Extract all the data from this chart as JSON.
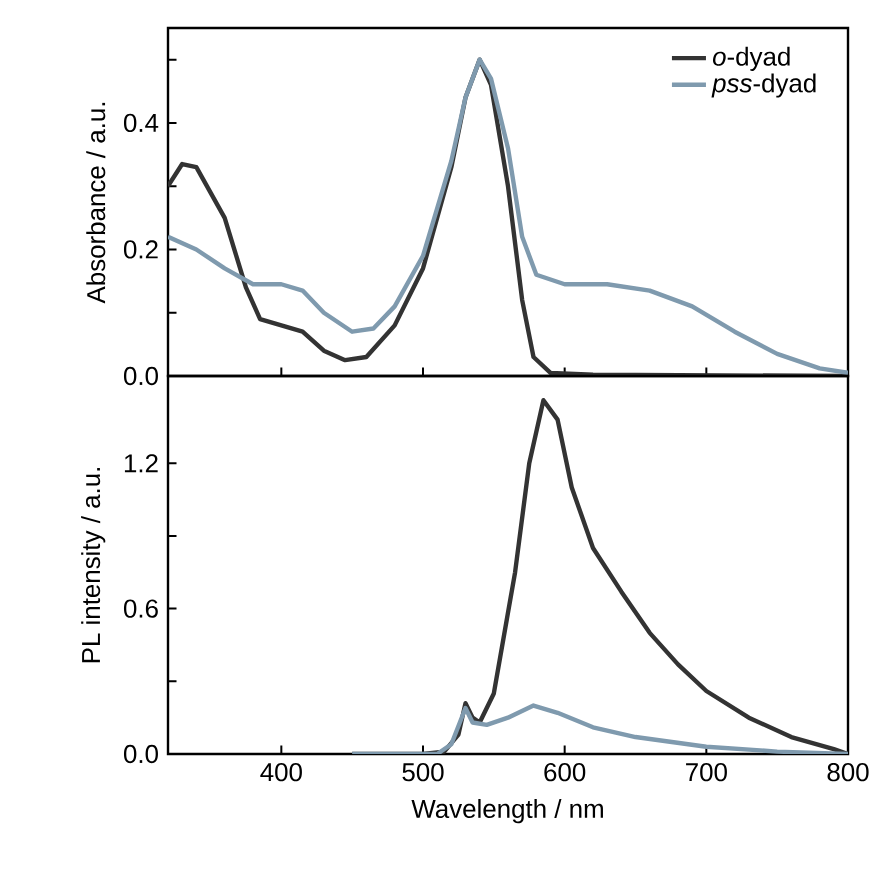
{
  "chart_data": [
    {
      "type": "line",
      "ylabel": "Absorbance / a.u.",
      "xlim": [
        320,
        800
      ],
      "ylim": [
        0,
        0.55
      ],
      "xticks": [
        400,
        500,
        600,
        700,
        800
      ],
      "yticks": [
        {
          "value": 0,
          "label": "0.0"
        },
        {
          "value": 0.1,
          "label": null
        },
        {
          "value": 0.2,
          "label": "0.2"
        },
        {
          "value": 0.3,
          "label": null
        },
        {
          "value": 0.4,
          "label": "0.4"
        },
        {
          "value": 0.5,
          "label": null
        }
      ],
      "tick_labels": "y",
      "legend": "top right",
      "grid": false,
      "line_style": "solid",
      "series": [
        {
          "name": "*o*-dyad",
          "color": "#333333",
          "x": [
            320,
            330,
            340,
            360,
            375,
            385,
            400,
            415,
            430,
            445,
            460,
            480,
            500,
            520,
            530,
            540,
            548,
            560,
            570,
            578,
            590,
            620,
            800
          ],
          "values": [
            0.3,
            0.335,
            0.33,
            0.25,
            0.14,
            0.09,
            0.08,
            0.07,
            0.04,
            0.025,
            0.03,
            0.08,
            0.17,
            0.33,
            0.44,
            0.5,
            0.46,
            0.3,
            0.12,
            0.03,
            0.005,
            0.002,
            0
          ]
        },
        {
          "name": "*pss*-dyad",
          "color": "#7f9aae",
          "x": [
            320,
            340,
            360,
            380,
            400,
            415,
            430,
            450,
            465,
            480,
            500,
            520,
            530,
            540,
            548,
            560,
            570,
            580,
            600,
            630,
            660,
            690,
            720,
            750,
            780,
            800
          ],
          "values": [
            0.22,
            0.2,
            0.17,
            0.145,
            0.145,
            0.135,
            0.1,
            0.07,
            0.075,
            0.11,
            0.19,
            0.34,
            0.44,
            0.5,
            0.47,
            0.36,
            0.22,
            0.16,
            0.145,
            0.145,
            0.135,
            0.11,
            0.07,
            0.035,
            0.012,
            0.005
          ]
        }
      ]
    },
    {
      "type": "line",
      "xlabel": "Wavelength / nm",
      "ylabel": "PL intensity / a.u.",
      "xlim": [
        320,
        800
      ],
      "ylim": [
        0,
        1.56
      ],
      "xticks": [
        400,
        500,
        600,
        700,
        800
      ],
      "yticks": [
        {
          "value": 0,
          "label": "0.0"
        },
        {
          "value": 0.3,
          "label": null
        },
        {
          "value": 0.6,
          "label": "0.6"
        },
        {
          "value": 0.9,
          "label": null
        },
        {
          "value": 1.2,
          "label": "1.2"
        }
      ],
      "grid": false,
      "line_style": "solid",
      "series": [
        {
          "color": "#333333",
          "x": [
            450,
            500,
            515,
            525,
            530,
            535,
            540,
            550,
            565,
            575,
            585,
            595,
            605,
            620,
            640,
            660,
            680,
            700,
            730,
            760,
            790,
            800
          ],
          "values": [
            0,
            0,
            0.01,
            0.08,
            0.21,
            0.15,
            0.13,
            0.25,
            0.75,
            1.2,
            1.46,
            1.38,
            1.1,
            0.85,
            0.67,
            0.5,
            0.37,
            0.26,
            0.15,
            0.07,
            0.02,
            0
          ]
        },
        {
          "color": "#7f9aae",
          "x": [
            450,
            510,
            520,
            530,
            535,
            545,
            560,
            578,
            595,
            620,
            650,
            700,
            750,
            800
          ],
          "values": [
            0,
            0,
            0.04,
            0.19,
            0.13,
            0.12,
            0.15,
            0.2,
            0.17,
            0.11,
            0.07,
            0.03,
            0.01,
            0
          ]
        }
      ]
    }
  ]
}
